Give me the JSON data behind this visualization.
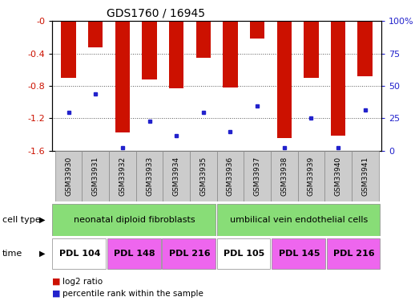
{
  "title": "GDS1760 / 16945",
  "samples": [
    "GSM33930",
    "GSM33931",
    "GSM33932",
    "GSM33933",
    "GSM33934",
    "GSM33935",
    "GSM33936",
    "GSM33937",
    "GSM33938",
    "GSM33939",
    "GSM33940",
    "GSM33941"
  ],
  "log2_values": [
    -0.7,
    -0.32,
    -1.38,
    -0.72,
    -0.83,
    -0.45,
    -0.82,
    -0.22,
    -1.45,
    -0.7,
    -1.42,
    -0.68
  ],
  "percentile_left_values": [
    -1.13,
    -0.9,
    -1.57,
    -1.24,
    -1.42,
    -1.13,
    -1.37,
    -1.05,
    -1.57,
    -1.2,
    -1.57,
    -1.1
  ],
  "ylim_left": [
    -1.6,
    0.0
  ],
  "ylim_right": [
    0,
    100
  ],
  "yticks_left": [
    0,
    -0.4,
    -0.8,
    -1.2,
    -1.6
  ],
  "ytick_labels_left": [
    "-0",
    "-0.4",
    "-0.8",
    "-1.2",
    "-1.6"
  ],
  "yticks_right": [
    100,
    75,
    50,
    25,
    0
  ],
  "ytick_labels_right": [
    "100%",
    "75",
    "50",
    "25",
    "0"
  ],
  "bar_color": "#cc1100",
  "marker_color": "#2222cc",
  "bg_color": "#ffffff",
  "cell_type_groups": [
    {
      "text": "neonatal diploid fibroblasts",
      "start": 0,
      "end": 6,
      "color": "#88dd77"
    },
    {
      "text": "umbilical vein endothelial cells",
      "start": 6,
      "end": 12,
      "color": "#88dd77"
    }
  ],
  "time_groups": [
    {
      "text": "PDL 104",
      "start": 0,
      "end": 2,
      "color": "#ffffff"
    },
    {
      "text": "PDL 148",
      "start": 2,
      "end": 4,
      "color": "#ee66ee"
    },
    {
      "text": "PDL 216",
      "start": 4,
      "end": 6,
      "color": "#ee66ee"
    },
    {
      "text": "PDL 105",
      "start": 6,
      "end": 8,
      "color": "#ffffff"
    },
    {
      "text": "PDL 145",
      "start": 8,
      "end": 10,
      "color": "#ee66ee"
    },
    {
      "text": "PDL 216",
      "start": 10,
      "end": 12,
      "color": "#ee66ee"
    }
  ],
  "xlabel_color": "#cc1100",
  "ylabel_right_color": "#2222cc",
  "sample_bg_color": "#cccccc"
}
